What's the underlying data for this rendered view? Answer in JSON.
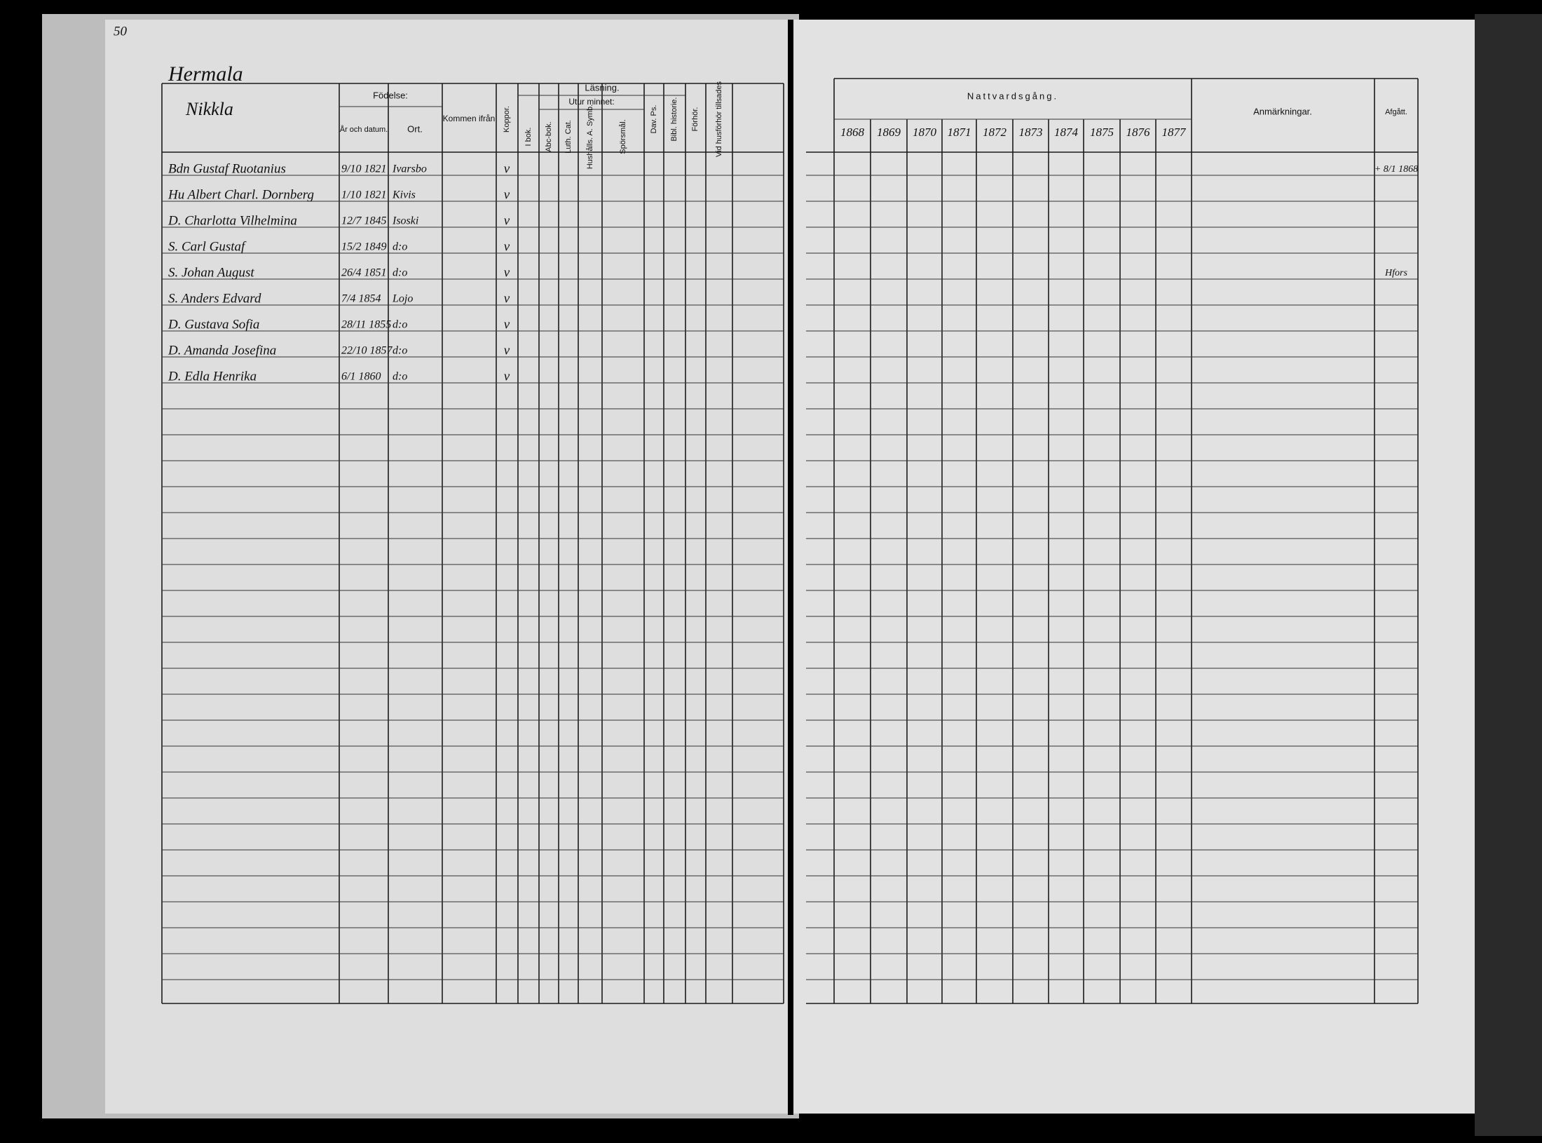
{
  "page_number": "50",
  "left_page": {
    "farm": "Hermala",
    "subtitle": "Nikkla",
    "headers": {
      "birth": "Födelse:",
      "birth_date": "År och datum.",
      "birth_place": "Ort.",
      "came_from": "Kommen ifrån",
      "smallpox": "Koppor.",
      "reading": "Läsning.",
      "by_heart": "Utur minnet:",
      "in_book": "I bok.",
      "abc_book": "Abc-bok.",
      "luth_cat": "Luth. Cat.",
      "household": "Hushålls. A. Symb.",
      "questions": "Spörsmål.",
      "dav_ps": "Dav. Ps.",
      "bibl_history": "Bibl. historie.",
      "understanding": "Förhör.",
      "noted_at_examination": "Vid husförhör tillsades"
    }
  },
  "right_page": {
    "headers": {
      "communion": "Nattvardsgång.",
      "years": [
        "1868",
        "1869",
        "1870",
        "1871",
        "1872",
        "1873",
        "1874",
        "1875",
        "1876",
        "1877"
      ],
      "remarks": "Anmärkningar.",
      "departed": "Afgått."
    }
  },
  "rows": [
    {
      "name": "Bdn Gustaf Ruotanius",
      "birth_date": "9/10 1821",
      "birth_place": "Ivarsbo",
      "smallpox": "v",
      "departed": "+ 8/1 1868"
    },
    {
      "name": "Hu Albert Charl. Dornberg",
      "birth_date": "1/10 1821",
      "birth_place": "Kivis",
      "smallpox": "v"
    },
    {
      "name": "D. Charlotta Vilhelmina",
      "birth_date": "12/7 1845",
      "birth_place": "Isoski",
      "smallpox": "v"
    },
    {
      "name": "S. Carl Gustaf",
      "birth_date": "15/2 1849",
      "birth_place": "d:o",
      "smallpox": "v"
    },
    {
      "name": "S. Johan August",
      "birth_date": "26/4 1851",
      "birth_place": "d:o",
      "smallpox": "v",
      "departed": "Hfors"
    },
    {
      "name": "S. Anders Edvard",
      "birth_date": "7/4 1854",
      "birth_place": "Lojo",
      "smallpox": "v"
    },
    {
      "name": "D. Gustava Sofia",
      "birth_date": "28/11 1855",
      "birth_place": "d:o",
      "smallpox": "v"
    },
    {
      "name": "D. Amanda Josefina",
      "birth_date": "22/10 1857",
      "birth_place": "d:o",
      "smallpox": "v"
    },
    {
      "name": "D. Edla Henrika",
      "birth_date": "6/1 1860",
      "birth_place": "d:o",
      "smallpox": "v"
    }
  ]
}
